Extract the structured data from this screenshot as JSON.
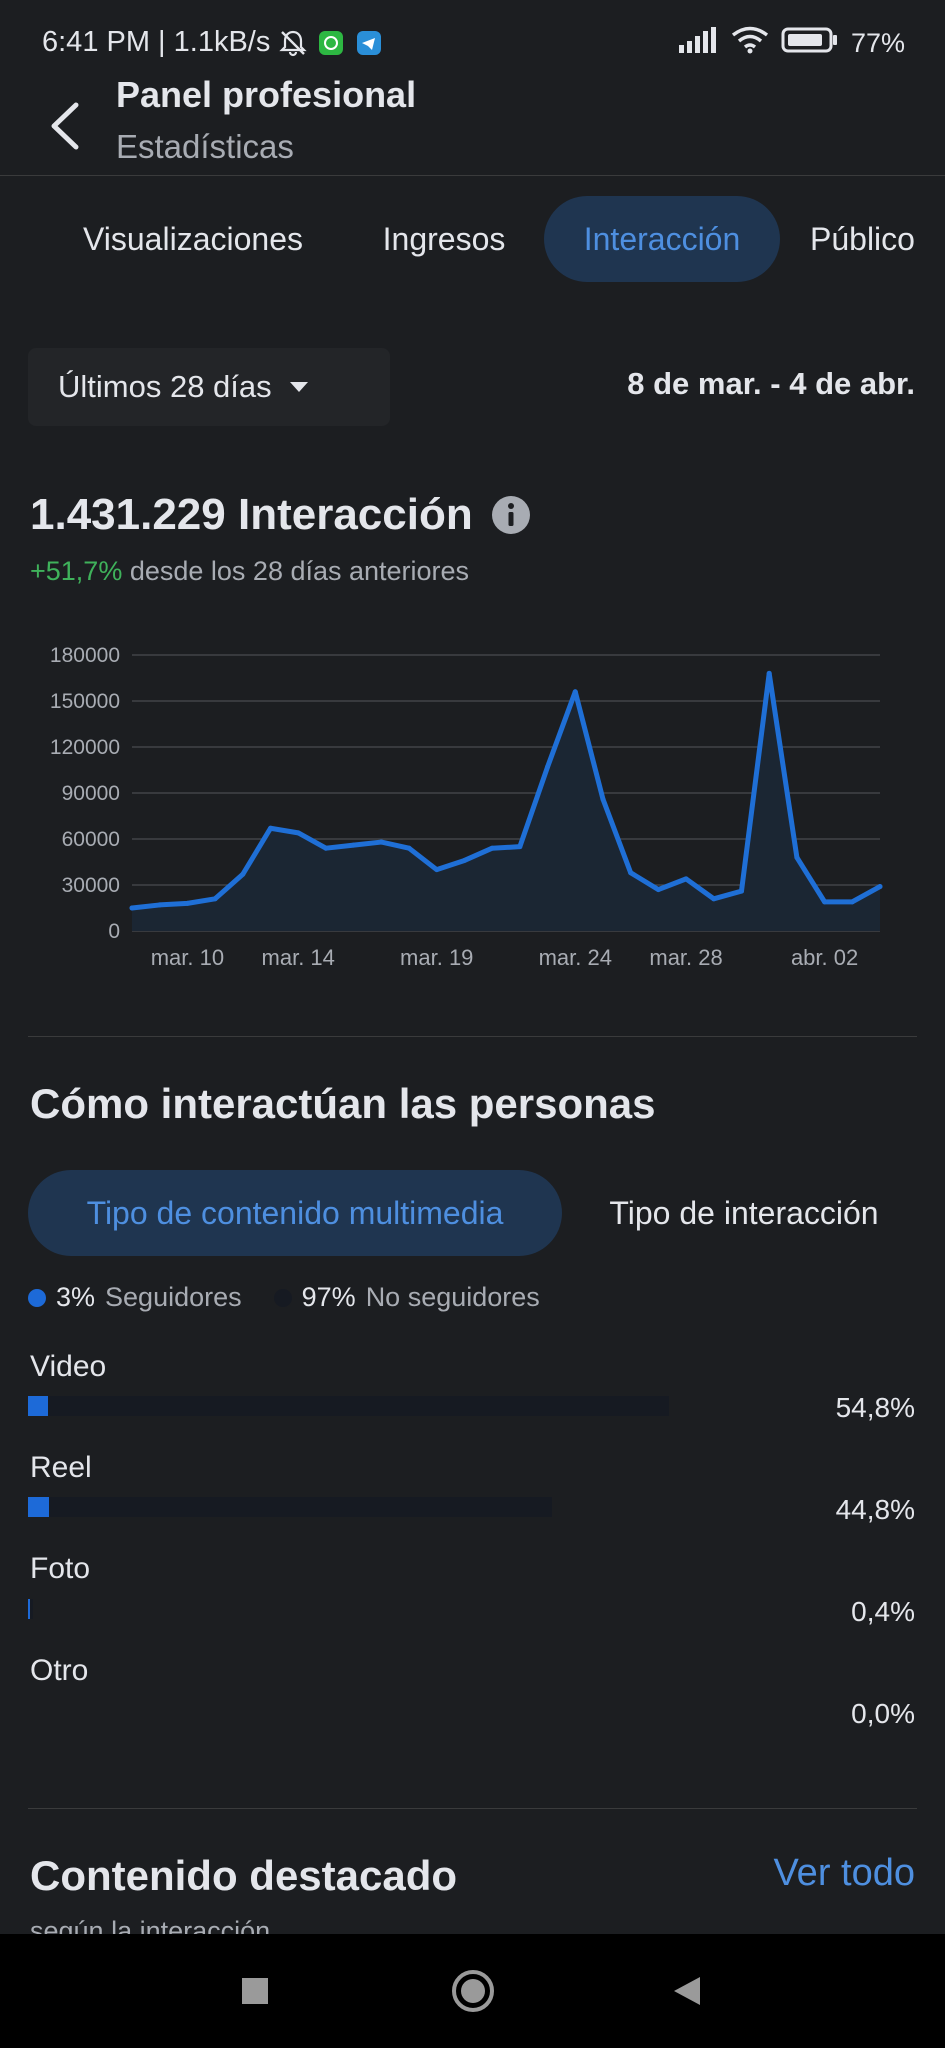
{
  "status_bar": {
    "time": "6:41 PM | 1.1kB/s",
    "battery": "77%",
    "icons": [
      "bell-off-icon",
      "whatsapp-icon",
      "telegram-icon",
      "signal-icon",
      "wifi-icon",
      "battery-icon"
    ]
  },
  "header": {
    "title": "Panel profesional",
    "subtitle": "Estadísticas"
  },
  "tabs": [
    {
      "label": "Visualizaciones",
      "active": false
    },
    {
      "label": "Ingresos",
      "active": false
    },
    {
      "label": "Interacción",
      "active": true
    },
    {
      "label": "Público",
      "active": false
    }
  ],
  "range": {
    "selector": "Últimos 28 días",
    "dates": "8 de mar. - 4 de abr."
  },
  "metric": {
    "value_label": "1.431.229 Interacción",
    "change": "+51,7%",
    "change_text": "desde los 28 días anteriores"
  },
  "chart_data": {
    "type": "area",
    "x_tick_labels": [
      "mar. 10",
      "mar. 14",
      "mar. 19",
      "mar. 24",
      "mar. 28",
      "abr. 02"
    ],
    "y_ticks": [
      "180000",
      "150000",
      "120000",
      "90000",
      "60000",
      "30000",
      "0"
    ],
    "ylim": [
      0,
      180000
    ],
    "x": [
      "mar. 8",
      "mar. 9",
      "mar. 10",
      "mar. 11",
      "mar. 12",
      "mar. 13",
      "mar. 14",
      "mar. 15",
      "mar. 16",
      "mar. 17",
      "mar. 18",
      "mar. 19",
      "mar. 20",
      "mar. 21",
      "mar. 22",
      "mar. 23",
      "mar. 24",
      "mar. 25",
      "mar. 26",
      "mar. 27",
      "mar. 28",
      "mar. 29",
      "mar. 30",
      "mar. 31",
      "abr. 01",
      "abr. 02",
      "abr. 03",
      "abr. 04"
    ],
    "values": [
      15000,
      17000,
      18000,
      21000,
      37000,
      67000,
      64000,
      54000,
      56000,
      58000,
      54000,
      40000,
      46000,
      54000,
      55000,
      107000,
      156000,
      86000,
      38000,
      27000,
      34000,
      21000,
      26000,
      168000,
      48000,
      19000,
      19000,
      29000
    ],
    "line_color": "#1f6fd6",
    "fill_color": "#1b2633",
    "grid": true
  },
  "section": {
    "title": "Cómo interactúan las personas",
    "segments": [
      {
        "label": "Tipo de contenido multimedia",
        "active": true
      },
      {
        "label": "Tipo de interacción",
        "active": false
      }
    ],
    "legend": [
      {
        "value": "3%",
        "label": "Seguidores",
        "color": "#1d6ad8"
      },
      {
        "value": "97%",
        "label": "No seguidores",
        "color": "#161a22"
      }
    ],
    "bars": [
      {
        "label": "Video",
        "value": "54,8%",
        "share": 0.548,
        "follower_share": 0.03
      },
      {
        "label": "Reel",
        "value": "44,8%",
        "share": 0.448,
        "follower_share": 0.04
      },
      {
        "label": "Foto",
        "value": "0,4%",
        "share": 0.004,
        "follower_share": 0.5
      },
      {
        "label": "Otro",
        "value": "0,0%",
        "share": 0.0,
        "follower_share": 0.0
      }
    ]
  },
  "featured": {
    "title": "Contenido destacado",
    "see_all": "Ver todo",
    "subtitle": "según la interacción"
  },
  "colors": {
    "background": "#1c1e21",
    "accent": "#4e8fe0",
    "positive": "#3fb25b"
  }
}
